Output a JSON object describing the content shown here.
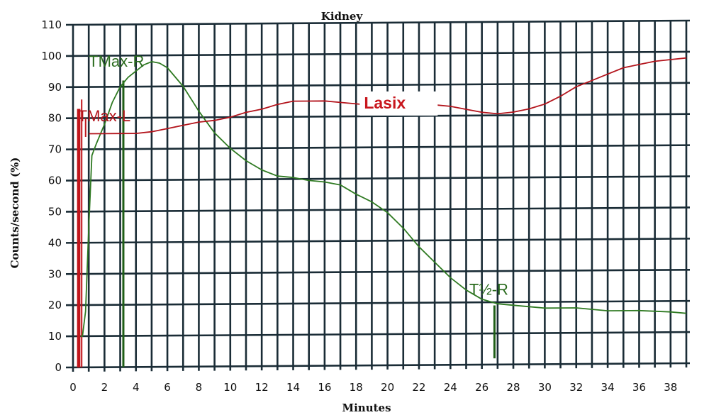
{
  "chart_data": {
    "type": "line",
    "title": "Kidney",
    "xlabel": "Minutes",
    "ylabel": "Counts/second (%)",
    "xlim": [
      0,
      39
    ],
    "ylim": [
      0,
      110
    ],
    "x_ticks": [
      0,
      2,
      4,
      6,
      8,
      10,
      12,
      14,
      16,
      18,
      20,
      22,
      24,
      26,
      28,
      30,
      32,
      34,
      36,
      38
    ],
    "y_ticks": [
      0,
      10,
      20,
      30,
      40,
      50,
      60,
      70,
      80,
      90,
      100,
      110
    ],
    "grid": true,
    "legend": "none",
    "series": [
      {
        "color": "#2f7a22",
        "x": [
          0.5,
          0.6,
          0.8,
          1.0,
          1.2,
          1.5,
          2.0,
          2.5,
          3.0,
          3.5,
          4.0,
          4.5,
          5.0,
          5.5,
          6.0,
          7.0,
          8.0,
          9.0,
          10.0,
          11.0,
          12.0,
          13.0,
          14.0,
          15.0,
          16.0,
          17.0,
          18.0,
          19.0,
          20.0,
          21.0,
          22.0,
          23.0,
          24.0,
          25.0,
          26.0,
          27.0,
          28.0,
          29.0,
          30.0,
          32.0,
          34.0,
          36.0,
          38.0,
          39.0
        ],
        "y": [
          10,
          10,
          18,
          45,
          68,
          72,
          78,
          85,
          90,
          93,
          95,
          97,
          98,
          97.5,
          96,
          90,
          82,
          75,
          70,
          66,
          63,
          61,
          60.5,
          59.5,
          59,
          58,
          55,
          52.5,
          49,
          44,
          38,
          33,
          28,
          24,
          21,
          19.5,
          19,
          18.5,
          18,
          18,
          17,
          17,
          16.5,
          16
        ]
      },
      {
        "color": "#b3141c",
        "x": [
          1.0,
          2.0,
          3.0,
          4.0,
          5.0,
          6.0,
          7.0,
          8.0,
          9.0,
          10.0,
          11.0,
          12.0,
          13.0,
          14.0,
          15.0,
          16.0,
          17.0,
          18.0,
          19.0,
          20.0,
          21.0,
          22.0,
          23.0,
          24.0,
          25.0,
          26.0,
          27.0,
          28.0,
          29.0,
          30.0,
          31.0,
          32.0,
          33.0,
          34.0,
          35.0,
          36.0,
          37.0,
          38.0,
          39.0
        ],
        "y": [
          75,
          75,
          75,
          75,
          75.5,
          76.5,
          77.5,
          78.5,
          79,
          80,
          81.5,
          82.5,
          84,
          85,
          85,
          85,
          84.5,
          84,
          83.5,
          83.5,
          83.5,
          83.5,
          83.5,
          83,
          82,
          81,
          80.5,
          81,
          82,
          83.5,
          86,
          89,
          91,
          93,
          95,
          96,
          97,
          97.5,
          98
        ]
      }
    ],
    "annotations": [
      {
        "text": "TMax-R",
        "x": 1.0,
        "y": 96.5,
        "color": "#2a6b1e"
      },
      {
        "text": "TMax-L",
        "x": 0.3,
        "y": 79,
        "color": "#b3141c"
      },
      {
        "text": "Lasix",
        "x": 18.5,
        "y": 82.5,
        "color": "#c8161d"
      },
      {
        "text": "T½-R",
        "x": 25.2,
        "y": 22.5,
        "color": "#2a6b1e"
      }
    ],
    "markers": [
      {
        "x": 3.2,
        "y_from": 0,
        "y_to": 92,
        "color": "#1f5e16"
      },
      {
        "x": 26.8,
        "y_from": 2,
        "y_to": 19,
        "color": "#1f5e16"
      },
      {
        "x": 0.4,
        "y_from": 0,
        "y_to": 83,
        "color": "#c0161c"
      }
    ]
  }
}
